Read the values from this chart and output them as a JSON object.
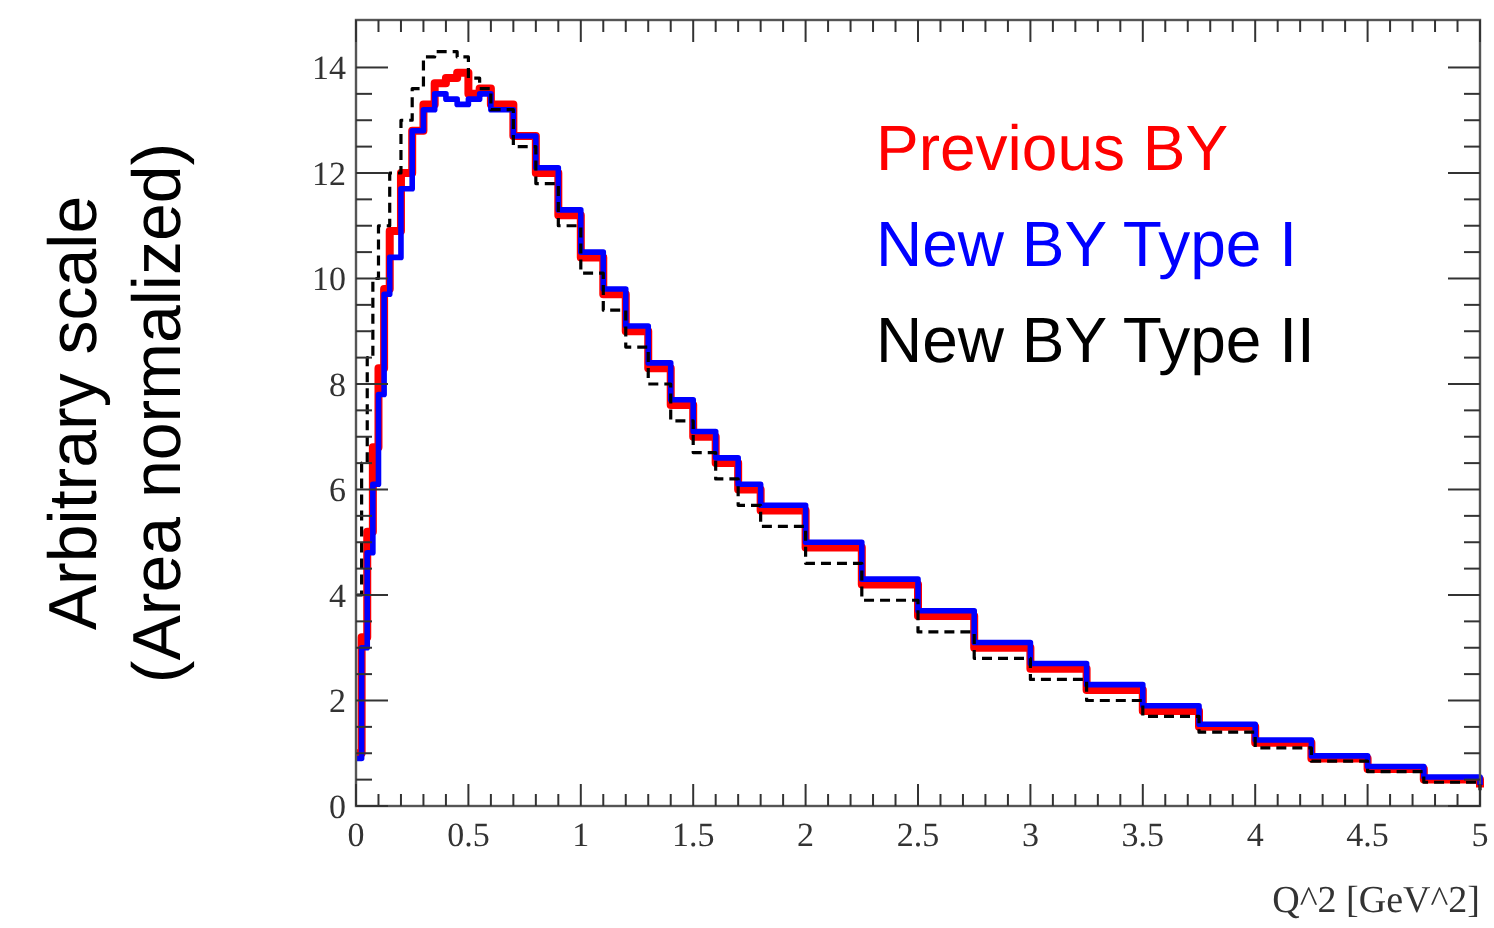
{
  "chart_data": {
    "type": "step",
    "xlabel": "Q^2 [GeV^2]",
    "ylabel": "Arbitrary scale\n(Area normalized)",
    "xlim": [
      0,
      5
    ],
    "ylim": [
      0,
      14.9
    ],
    "xticks": [
      0,
      0.5,
      1,
      1.5,
      2,
      2.5,
      3,
      3.5,
      4,
      4.5,
      5
    ],
    "yticks": [
      0,
      2,
      4,
      6,
      8,
      10,
      12,
      14
    ],
    "legend": "top right",
    "grid": false,
    "series": [
      {
        "name": "Previous BY",
        "color": "#ff0000",
        "line_style": "solid",
        "x": [
          0,
          0.025,
          0.05,
          0.075,
          0.1,
          0.125,
          0.15,
          0.2,
          0.25,
          0.3,
          0.35,
          0.4,
          0.45,
          0.5,
          0.55,
          0.6,
          0.7,
          0.8,
          0.9,
          1.0,
          1.1,
          1.2,
          1.3,
          1.4,
          1.5,
          1.6,
          1.7,
          1.8,
          2.0,
          2.25,
          2.5,
          2.75,
          3.0,
          3.25,
          3.5,
          3.75,
          4.0,
          4.25,
          4.5,
          4.75,
          5
        ],
        "values": [
          1,
          3.2,
          5.2,
          6.8,
          8.3,
          9.8,
          10.9,
          12,
          12.8,
          13.3,
          13.7,
          13.8,
          13.9,
          13.5,
          13.6,
          13.3,
          12.7,
          12,
          11.2,
          10.4,
          9.7,
          9,
          8.3,
          7.6,
          7,
          6.5,
          6,
          5.6,
          4.9,
          4.2,
          3.6,
          3,
          2.6,
          2.2,
          1.8,
          1.5,
          1.2,
          0.9,
          0.7,
          0.5,
          0.35
        ]
      },
      {
        "name": "New BY Type I",
        "color": "#0000ff",
        "line_style": "solid",
        "x": [
          0,
          0.025,
          0.05,
          0.075,
          0.1,
          0.125,
          0.15,
          0.2,
          0.25,
          0.3,
          0.35,
          0.4,
          0.45,
          0.5,
          0.55,
          0.6,
          0.7,
          0.8,
          0.9,
          1.0,
          1.1,
          1.2,
          1.3,
          1.4,
          1.5,
          1.6,
          1.7,
          1.8,
          2.0,
          2.25,
          2.5,
          2.75,
          3.0,
          3.25,
          3.5,
          3.75,
          4.0,
          4.25,
          4.5,
          4.75,
          5
        ],
        "values": [
          0.9,
          3,
          4.8,
          6.1,
          7.8,
          9.7,
          10.4,
          11.7,
          12.8,
          13.2,
          13.5,
          13.4,
          13.3,
          13.4,
          13.5,
          13.2,
          12.7,
          12.1,
          11.3,
          10.5,
          9.8,
          9.1,
          8.4,
          7.7,
          7.1,
          6.6,
          6.1,
          5.7,
          5,
          4.3,
          3.7,
          3.1,
          2.7,
          2.3,
          1.9,
          1.55,
          1.25,
          0.95,
          0.75,
          0.55,
          0.4
        ]
      },
      {
        "name": "New BY Type II",
        "color": "#000000",
        "line_style": "dashed",
        "x": [
          0,
          0.025,
          0.05,
          0.075,
          0.1,
          0.15,
          0.2,
          0.25,
          0.3,
          0.35,
          0.4,
          0.45,
          0.5,
          0.55,
          0.6,
          0.7,
          0.8,
          0.9,
          1.0,
          1.1,
          1.2,
          1.3,
          1.4,
          1.5,
          1.6,
          1.7,
          1.8,
          2.0,
          2.25,
          2.5,
          2.75,
          3.0,
          3.25,
          3.5,
          3.75,
          4.0,
          4.25,
          4.5,
          4.75,
          5
        ],
        "values": [
          4,
          6.5,
          8.5,
          10,
          11,
          12,
          13,
          13.6,
          14.2,
          14.3,
          14.3,
          14.2,
          13.8,
          13.6,
          13.2,
          12.5,
          11.8,
          11,
          10.1,
          9.4,
          8.7,
          8,
          7.3,
          6.7,
          6.2,
          5.7,
          5.3,
          4.6,
          3.9,
          3.3,
          2.8,
          2.4,
          2,
          1.7,
          1.4,
          1.1,
          0.85,
          0.65,
          0.45,
          0.3
        ]
      }
    ]
  }
}
